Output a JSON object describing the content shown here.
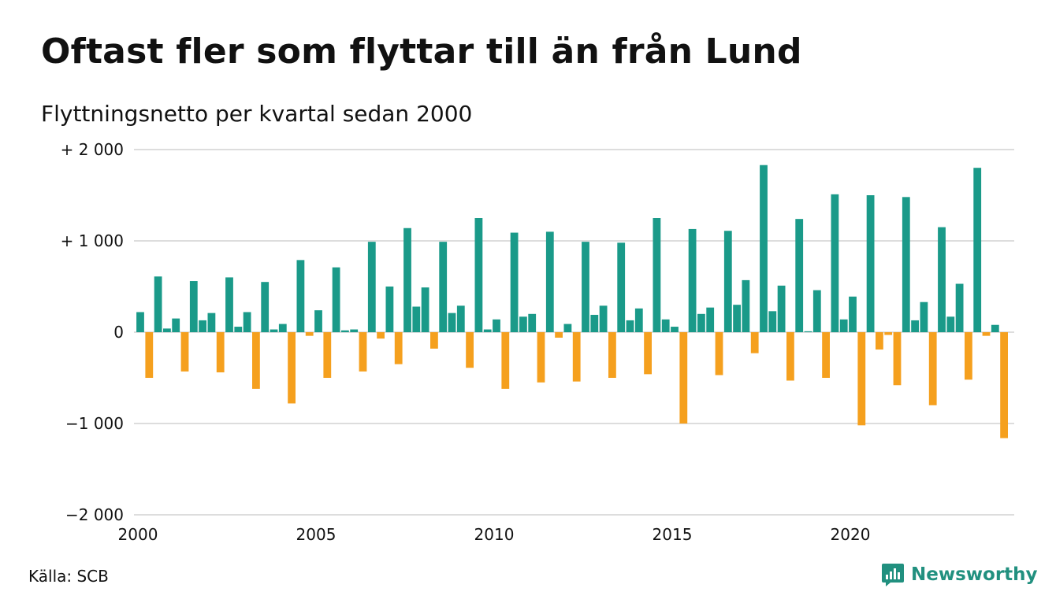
{
  "header": {
    "title": "Oftast fler som flyttar till än från Lund",
    "subtitle": "Flyttningsnetto per kvartal sedan 2000"
  },
  "footer": {
    "source": "Källa: SCB",
    "brand": "Newsworthy"
  },
  "colors": {
    "positive": "#1a9a89",
    "negative": "#f5a01e",
    "grid": "#dddddd",
    "brand": "#21907f"
  },
  "icons": {
    "brand_logo": "newsworthy-logo-icon"
  },
  "chart_data": {
    "type": "bar",
    "x_start": "2000 Q1",
    "x_ticks": [
      {
        "label": "2000",
        "year": 2000
      },
      {
        "label": "2005",
        "year": 2005
      },
      {
        "label": "2010",
        "year": 2010
      },
      {
        "label": "2015",
        "year": 2015
      },
      {
        "label": "2020",
        "year": 2020
      }
    ],
    "y_ticks": [
      {
        "label": "+ 2 000",
        "value": 2000
      },
      {
        "label": "+ 1 000",
        "value": 1000
      },
      {
        "label": "0",
        "value": 0
      },
      {
        "label": "−1 000",
        "value": -1000
      },
      {
        "label": "−2 000",
        "value": -2000
      }
    ],
    "ylim": [
      -2000,
      2000
    ],
    "grid": true,
    "values": [
      220,
      -500,
      610,
      40,
      150,
      -430,
      560,
      130,
      210,
      -440,
      600,
      60,
      220,
      -620,
      550,
      30,
      90,
      -780,
      790,
      -40,
      240,
      -500,
      710,
      20,
      30,
      -430,
      990,
      -70,
      500,
      -350,
      1140,
      280,
      490,
      -180,
      990,
      210,
      290,
      -390,
      1250,
      30,
      140,
      -620,
      1090,
      170,
      200,
      -550,
      1100,
      -60,
      90,
      -540,
      990,
      190,
      290,
      -500,
      980,
      130,
      260,
      -460,
      1250,
      140,
      60,
      -1000,
      1130,
      200,
      270,
      -470,
      1110,
      300,
      570,
      -230,
      1830,
      230,
      510,
      -530,
      1240,
      10,
      460,
      -500,
      1510,
      140,
      390,
      -1020,
      1500,
      -190,
      -30,
      -580,
      1480,
      130,
      330,
      -800,
      1150,
      170,
      530,
      -520,
      1800,
      -40,
      80,
      -1160
    ]
  }
}
